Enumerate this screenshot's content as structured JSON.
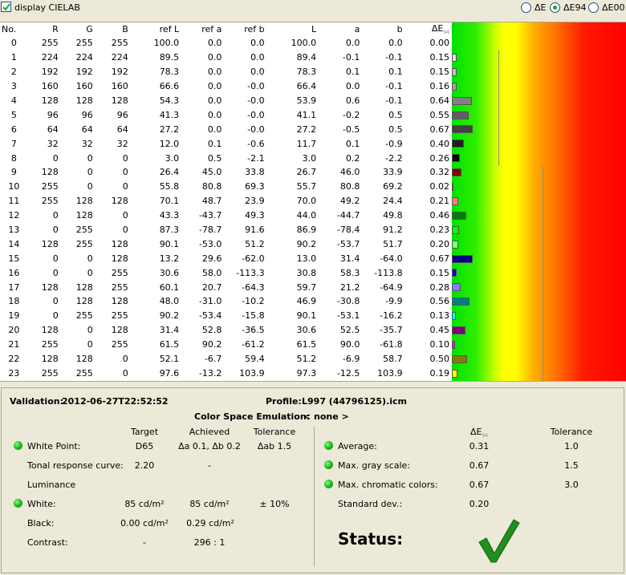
{
  "toolbar": {
    "display_cielab_label": "display CIELAB",
    "display_cielab_checked": true,
    "delta_options": [
      {
        "label": "ΔE",
        "selected": false
      },
      {
        "label": "ΔE94",
        "selected": true
      },
      {
        "label": "ΔE00",
        "selected": false
      }
    ]
  },
  "table": {
    "headers": {
      "no": "No.",
      "r": "R",
      "g": "G",
      "b": "B",
      "ref_l": "ref L",
      "ref_a": "ref a",
      "ref_b": "ref b",
      "l": "L",
      "a": "a",
      "bb": "b",
      "de": "ΔE",
      "de_sub": "94"
    },
    "rows": [
      {
        "no": "0",
        "r": "255",
        "g": "255",
        "b": "255",
        "refl": "100.0",
        "refa": "0.0",
        "refb": "0.0",
        "l": "100.0",
        "a": "0.0",
        "bb": "0.0",
        "de": "0.00",
        "de_val": 0.0,
        "swatch": "#ffffff"
      },
      {
        "no": "1",
        "r": "224",
        "g": "224",
        "b": "224",
        "refl": "89.5",
        "refa": "0.0",
        "refb": "0.0",
        "l": "89.4",
        "a": "-0.1",
        "bb": "-0.1",
        "de": "0.15",
        "de_val": 0.15,
        "swatch": "#e0e0e0"
      },
      {
        "no": "2",
        "r": "192",
        "g": "192",
        "b": "192",
        "refl": "78.3",
        "refa": "0.0",
        "refb": "0.0",
        "l": "78.3",
        "a": "0.1",
        "bb": "0.1",
        "de": "0.15",
        "de_val": 0.15,
        "swatch": "#c0c0c0"
      },
      {
        "no": "3",
        "r": "160",
        "g": "160",
        "b": "160",
        "refl": "66.6",
        "refa": "0.0",
        "refb": "-0.0",
        "l": "66.4",
        "a": "0.0",
        "bb": "-0.1",
        "de": "0.16",
        "de_val": 0.16,
        "swatch": "#a0a0a0"
      },
      {
        "no": "4",
        "r": "128",
        "g": "128",
        "b": "128",
        "refl": "54.3",
        "refa": "0.0",
        "refb": "-0.0",
        "l": "53.9",
        "a": "0.6",
        "bb": "-0.1",
        "de": "0.64",
        "de_val": 0.64,
        "swatch": "#808080"
      },
      {
        "no": "5",
        "r": "96",
        "g": "96",
        "b": "96",
        "refl": "41.3",
        "refa": "0.0",
        "refb": "-0.0",
        "l": "41.1",
        "a": "-0.2",
        "bb": "0.5",
        "de": "0.55",
        "de_val": 0.55,
        "swatch": "#606060"
      },
      {
        "no": "6",
        "r": "64",
        "g": "64",
        "b": "64",
        "refl": "27.2",
        "refa": "0.0",
        "refb": "-0.0",
        "l": "27.2",
        "a": "-0.5",
        "bb": "0.5",
        "de": "0.67",
        "de_val": 0.67,
        "swatch": "#404040"
      },
      {
        "no": "7",
        "r": "32",
        "g": "32",
        "b": "32",
        "refl": "12.0",
        "refa": "0.1",
        "refb": "-0.6",
        "l": "11.7",
        "a": "0.1",
        "bb": "-0.9",
        "de": "0.40",
        "de_val": 0.4,
        "swatch": "#202020"
      },
      {
        "no": "8",
        "r": "0",
        "g": "0",
        "b": "0",
        "refl": "3.0",
        "refa": "0.5",
        "refb": "-2.1",
        "l": "3.0",
        "a": "0.2",
        "bb": "-2.2",
        "de": "0.26",
        "de_val": 0.26,
        "swatch": "#000000"
      },
      {
        "no": "9",
        "r": "128",
        "g": "0",
        "b": "0",
        "refl": "26.4",
        "refa": "45.0",
        "refb": "33.8",
        "l": "26.7",
        "a": "46.0",
        "bb": "33.9",
        "de": "0.32",
        "de_val": 0.32,
        "swatch": "#800000"
      },
      {
        "no": "10",
        "r": "255",
        "g": "0",
        "b": "0",
        "refl": "55.8",
        "refa": "80.8",
        "refb": "69.3",
        "l": "55.7",
        "a": "80.8",
        "bb": "69.2",
        "de": "0.02",
        "de_val": 0.02,
        "swatch": "#ff0000"
      },
      {
        "no": "11",
        "r": "255",
        "g": "128",
        "b": "128",
        "refl": "70.1",
        "refa": "48.7",
        "refb": "23.9",
        "l": "70.0",
        "a": "49.2",
        "bb": "24.4",
        "de": "0.21",
        "de_val": 0.21,
        "swatch": "#ff8080"
      },
      {
        "no": "12",
        "r": "0",
        "g": "128",
        "b": "0",
        "refl": "43.3",
        "refa": "-43.7",
        "refb": "49.3",
        "l": "44.0",
        "a": "-44.7",
        "bb": "49.8",
        "de": "0.46",
        "de_val": 0.46,
        "swatch": "#008000"
      },
      {
        "no": "13",
        "r": "0",
        "g": "255",
        "b": "0",
        "refl": "87.3",
        "refa": "-78.7",
        "refb": "91.6",
        "l": "86.9",
        "a": "-78.4",
        "bb": "91.2",
        "de": "0.23",
        "de_val": 0.23,
        "swatch": "#00ff00"
      },
      {
        "no": "14",
        "r": "128",
        "g": "255",
        "b": "128",
        "refl": "90.1",
        "refa": "-53.0",
        "refb": "51.2",
        "l": "90.2",
        "a": "-53.7",
        "bb": "51.7",
        "de": "0.20",
        "de_val": 0.2,
        "swatch": "#80ff80"
      },
      {
        "no": "15",
        "r": "0",
        "g": "0",
        "b": "128",
        "refl": "13.2",
        "refa": "29.6",
        "refb": "-62.0",
        "l": "13.0",
        "a": "31.4",
        "bb": "-64.0",
        "de": "0.67",
        "de_val": 0.67,
        "swatch": "#000080"
      },
      {
        "no": "16",
        "r": "0",
        "g": "0",
        "b": "255",
        "refl": "30.6",
        "refa": "58.0",
        "refb": "-113.3",
        "l": "30.8",
        "a": "58.3",
        "bb": "-113.8",
        "de": "0.15",
        "de_val": 0.15,
        "swatch": "#0000ff"
      },
      {
        "no": "17",
        "r": "128",
        "g": "128",
        "b": "255",
        "refl": "60.1",
        "refa": "20.7",
        "refb": "-64.3",
        "l": "59.7",
        "a": "21.2",
        "bb": "-64.9",
        "de": "0.28",
        "de_val": 0.28,
        "swatch": "#8080ff"
      },
      {
        "no": "18",
        "r": "0",
        "g": "128",
        "b": "128",
        "refl": "48.0",
        "refa": "-31.0",
        "refb": "-10.2",
        "l": "46.9",
        "a": "-30.8",
        "bb": "-9.9",
        "de": "0.56",
        "de_val": 0.56,
        "swatch": "#008080"
      },
      {
        "no": "19",
        "r": "0",
        "g": "255",
        "b": "255",
        "refl": "90.2",
        "refa": "-53.4",
        "refb": "-15.8",
        "l": "90.1",
        "a": "-53.1",
        "bb": "-16.2",
        "de": "0.13",
        "de_val": 0.13,
        "swatch": "#00ffff"
      },
      {
        "no": "20",
        "r": "128",
        "g": "0",
        "b": "128",
        "refl": "31.4",
        "refa": "52.8",
        "refb": "-36.5",
        "l": "30.6",
        "a": "52.5",
        "bb": "-35.7",
        "de": "0.45",
        "de_val": 0.45,
        "swatch": "#800080"
      },
      {
        "no": "21",
        "r": "255",
        "g": "0",
        "b": "255",
        "refl": "61.5",
        "refa": "90.2",
        "refb": "-61.2",
        "l": "61.5",
        "a": "90.0",
        "bb": "-61.8",
        "de": "0.10",
        "de_val": 0.1,
        "swatch": "#ff00ff"
      },
      {
        "no": "22",
        "r": "128",
        "g": "128",
        "b": "0",
        "refl": "52.1",
        "refa": "-6.7",
        "refb": "59.4",
        "l": "51.2",
        "a": "-6.9",
        "bb": "58.7",
        "de": "0.50",
        "de_val": 0.5,
        "swatch": "#808000"
      },
      {
        "no": "23",
        "r": "255",
        "g": "255",
        "b": "0",
        "refl": "97.6",
        "refa": "-13.2",
        "refb": "103.9",
        "l": "97.3",
        "a": "-12.5",
        "bb": "103.9",
        "de": "0.19",
        "de_val": 0.19,
        "swatch": "#ffff00"
      }
    ],
    "tolerance_lines": {
      "gray": 1.5,
      "chromatic": 3.0
    },
    "bar_scale_max": 9.0
  },
  "summary": {
    "validation_label": "Validation:",
    "validation_value": "2012-06-27T22:52:52",
    "profile_label": "Profile:",
    "profile_value": "L997 (44796125).icm",
    "emulation_label": "Color Space Emulation:",
    "emulation_value": "< none >",
    "left_headers": {
      "target": "Target",
      "achieved": "Achieved",
      "tolerance": "Tolerance"
    },
    "white_point": {
      "label": "White Point:",
      "target": "D65",
      "achieved": "Δa 0.1, Δb 0.2",
      "tolerance": "Δab 1.5"
    },
    "trc": {
      "label": "Tonal response curve:",
      "target": "2.20",
      "achieved": "-"
    },
    "luminance_label": "Luminance",
    "white": {
      "label": "White:",
      "target": "85 cd/m²",
      "achieved": "85 cd/m²",
      "tolerance": "± 10%"
    },
    "black": {
      "label": "Black:",
      "target": "0.00 cd/m²",
      "achieved": "0.29 cd/m²"
    },
    "contrast": {
      "label": "Contrast:",
      "target": "-",
      "achieved": "296 : 1"
    },
    "right_headers": {
      "de": "ΔE",
      "de_sub": "94",
      "tolerance": "Tolerance"
    },
    "average": {
      "label": "Average:",
      "value": "0.31",
      "tolerance": "1.0"
    },
    "max_gray": {
      "label": "Max. gray scale:",
      "value": "0.67",
      "tolerance": "1.5"
    },
    "max_chromatic": {
      "label": "Max. chromatic colors:",
      "value": "0.67",
      "tolerance": "3.0"
    },
    "std_dev": {
      "label": "Standard dev.:",
      "value": "0.20"
    },
    "status_label": "Status:",
    "status_color": "#1f8f1f"
  }
}
